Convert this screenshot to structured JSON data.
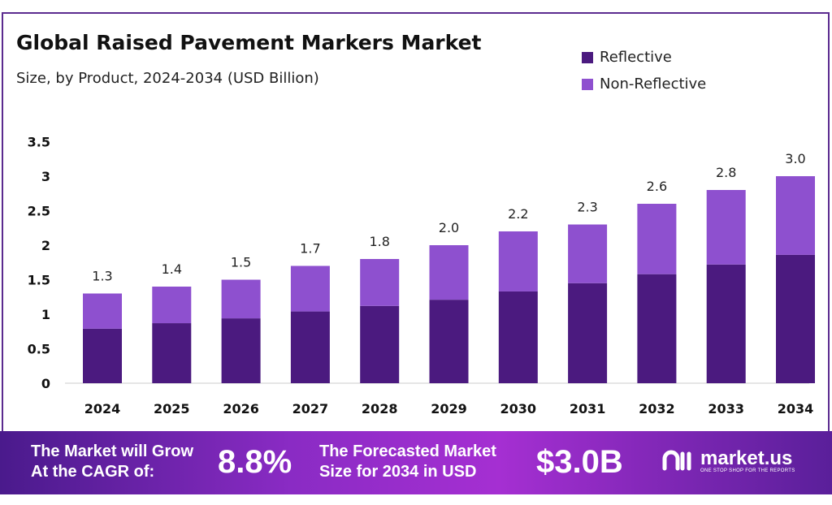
{
  "chart_data": {
    "type": "bar",
    "stacked": true,
    "title": "Global Raised Pavement Markers Market",
    "subtitle": "Size, by Product, 2024-2034 (USD Billion)",
    "categories": [
      "2024",
      "2025",
      "2026",
      "2027",
      "2028",
      "2029",
      "2030",
      "2031",
      "2032",
      "2033",
      "2034"
    ],
    "series": [
      {
        "name": "Reflective",
        "color": "#4b1a7f",
        "values": [
          0.79,
          0.87,
          0.94,
          1.04,
          1.12,
          1.21,
          1.33,
          1.45,
          1.58,
          1.72,
          1.86
        ]
      },
      {
        "name": "Non-Reflective",
        "color": "#8e50cf",
        "values": [
          0.51,
          0.53,
          0.56,
          0.66,
          0.68,
          0.79,
          0.87,
          0.85,
          1.02,
          1.08,
          1.14
        ]
      }
    ],
    "totals": [
      "1.3",
      "1.4",
      "1.5",
      "1.7",
      "1.8",
      "2.0",
      "2.2",
      "2.3",
      "2.6",
      "2.8",
      "3.0"
    ],
    "yticks": [
      "0",
      "0.5",
      "1",
      "1.5",
      "2",
      "2.5",
      "3",
      "3.5"
    ],
    "ylim": [
      0,
      3.5
    ],
    "grid": false,
    "legend": "top-right"
  },
  "banner": {
    "cagr_text_1": "The Market will Grow",
    "cagr_text_2": "At the CAGR of:",
    "cagr": "8.8%",
    "forecast_text_1": "The Forecasted Market",
    "forecast_text_2": "Size for 2034 in USD",
    "forecast": "$3.0B",
    "logo": "market.us",
    "tagline": "ONE STOP SHOP FOR THE REPORTS"
  }
}
